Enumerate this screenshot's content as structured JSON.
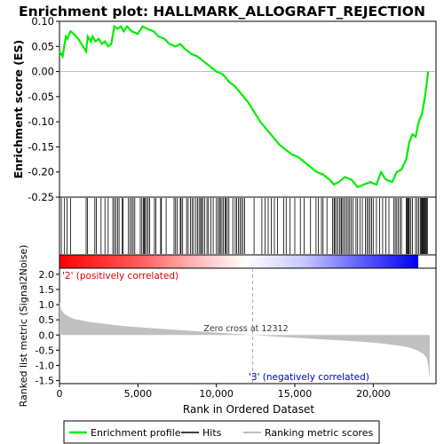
{
  "chart_data": {
    "type": "line",
    "title": "Enrichment plot: HALLMARK_ALLOGRAFT_REJECTION",
    "xlabel": "Rank in Ordered Dataset",
    "xlim": [
      0,
      24000
    ],
    "x_ticks": [
      0,
      5000,
      10000,
      15000,
      20000
    ],
    "x_tick_labels": [
      "0",
      "5,000",
      "10,000",
      "15,000",
      "20,000"
    ],
    "es_panel": {
      "ylabel": "Enrichment score (ES)",
      "ylim": [
        -0.25,
        0.1
      ],
      "y_ticks": [
        0.1,
        0.05,
        0.0,
        -0.05,
        -0.1,
        -0.15,
        -0.2,
        -0.25
      ],
      "y_tick_labels": [
        "0.10",
        "0.05",
        "0.00",
        "-0.05",
        "-0.10",
        "-0.15",
        "-0.20",
        "-0.25"
      ],
      "line_color": "#00ee00",
      "series": [
        {
          "name": "Enrichment profile",
          "x": [
            0,
            200,
            400,
            500,
            700,
            900,
            1200,
            1500,
            1700,
            1800,
            2000,
            2100,
            2300,
            2500,
            2700,
            2900,
            3100,
            3300,
            3500,
            3700,
            3900,
            4100,
            4300,
            4600,
            5000,
            5300,
            5600,
            6000,
            6300,
            6700,
            7000,
            7400,
            7700,
            8000,
            8400,
            8800,
            9200,
            9600,
            10000,
            10400,
            10800,
            11200,
            11600,
            12000,
            12400,
            12800,
            13200,
            13600,
            14000,
            14400,
            14800,
            15200,
            15600,
            16000,
            16400,
            16800,
            17200,
            17500,
            17800,
            18200,
            18600,
            19000,
            19400,
            19800,
            20200,
            20500,
            20800,
            21200,
            21500,
            21800,
            22100,
            22300,
            22500,
            22700,
            22900,
            23100,
            23300,
            23500
          ],
          "y": [
            0.04,
            0.03,
            0.07,
            0.065,
            0.08,
            0.075,
            0.065,
            0.05,
            0.04,
            0.07,
            0.06,
            0.07,
            0.06,
            0.065,
            0.055,
            0.06,
            0.05,
            0.055,
            0.09,
            0.085,
            0.09,
            0.08,
            0.09,
            0.08,
            0.075,
            0.09,
            0.085,
            0.08,
            0.07,
            0.065,
            0.055,
            0.05,
            0.055,
            0.045,
            0.035,
            0.03,
            0.02,
            0.01,
            0.0,
            -0.005,
            -0.02,
            -0.03,
            -0.045,
            -0.06,
            -0.08,
            -0.1,
            -0.115,
            -0.13,
            -0.145,
            -0.155,
            -0.165,
            -0.17,
            -0.18,
            -0.19,
            -0.2,
            -0.205,
            -0.215,
            -0.225,
            -0.22,
            -0.21,
            -0.215,
            -0.23,
            -0.225,
            -0.22,
            -0.225,
            -0.2,
            -0.215,
            -0.22,
            -0.2,
            -0.195,
            -0.175,
            -0.14,
            -0.125,
            -0.13,
            -0.1,
            -0.085,
            -0.05,
            0.0
          ]
        }
      ]
    },
    "hits": [
      120,
      320,
      480,
      700,
      1700,
      1780,
      2250,
      2350,
      2650,
      2900,
      3100,
      3400,
      3500,
      3600,
      3700,
      3800,
      4000,
      4050,
      4400,
      4500,
      4600,
      4700,
      4800,
      5150,
      5250,
      5350,
      5400,
      5450,
      5550,
      5650,
      5750,
      6050,
      6150,
      6450,
      6500,
      6800,
      7300,
      7400,
      7500,
      7700,
      7750,
      7850,
      8100,
      8200,
      8350,
      8450,
      8550,
      8700,
      8800,
      8900,
      9000,
      9050,
      9150,
      9250,
      9400,
      9500,
      9650,
      9800,
      10000,
      10100,
      10200,
      10250,
      10350,
      10450,
      10550,
      10600,
      10700,
      10800,
      11050,
      11200,
      11300,
      11400,
      11500,
      11600,
      11700,
      11800,
      12400,
      12900,
      13100,
      13300,
      13500,
      13700,
      13900,
      14300,
      14450,
      14700,
      15000,
      15350,
      15600,
      16000,
      16350,
      16500,
      16700,
      16800,
      17050,
      17400,
      17500,
      17550,
      17650,
      17750,
      17850,
      17950,
      18000,
      18100,
      18200,
      18300,
      18400,
      18500,
      18600,
      18700,
      18900,
      19000,
      19150,
      19300,
      19500,
      19600,
      19700,
      19800,
      19900,
      20000,
      20200,
      20400,
      20600,
      20800,
      21000,
      21300,
      21400,
      21500,
      21600,
      21700,
      21800,
      22100,
      22150,
      22200,
      22250,
      22300,
      22400,
      22500,
      22700,
      22800,
      22900,
      23000,
      23050,
      23100,
      23150,
      23200,
      23250,
      23300,
      23350,
      23400,
      23450
    ],
    "heatmap": {
      "colors": [
        "#ff0000",
        "#ffffff",
        "#0000ff"
      ],
      "pos_label": "'2' (positively correlated)",
      "neg_label": "'3' (negatively correlated)"
    },
    "metric_panel": {
      "ylabel": "Ranked list metric (Signal2Noise)",
      "ylim": [
        -1.6,
        2.2
      ],
      "y_ticks": [
        2.0,
        1.5,
        1.0,
        0.5,
        0.0,
        -0.5,
        -1.0,
        -1.5
      ],
      "y_tick_labels": [
        "2.0",
        "1.5",
        "1.0",
        "0.5",
        "0.0",
        "-0.5",
        "-1.0",
        "-1.5"
      ],
      "fill_color": "#c0c0c0",
      "x": [
        0,
        100,
        300,
        600,
        1000,
        2000,
        3000,
        4000,
        6000,
        8000,
        10000,
        12312,
        14000,
        16000,
        18000,
        19500,
        20500,
        21500,
        22200,
        22800,
        23200,
        23400,
        23500,
        23600
      ],
      "y": [
        1.1,
        0.85,
        0.7,
        0.6,
        0.52,
        0.42,
        0.36,
        0.3,
        0.22,
        0.15,
        0.08,
        0.0,
        -0.06,
        -0.12,
        -0.18,
        -0.23,
        -0.28,
        -0.34,
        -0.4,
        -0.5,
        -0.62,
        -0.75,
        -1.0,
        -1.45
      ],
      "zero_cross_label": "Zero cross at 12312",
      "zero_cross": 12312
    },
    "legend": {
      "placement": "bottom",
      "entries": [
        "Enrichment profile",
        "Hits",
        "Ranking metric scores"
      ]
    }
  }
}
